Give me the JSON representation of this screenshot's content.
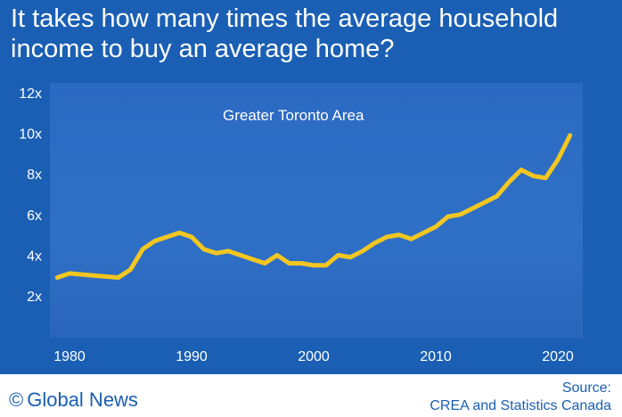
{
  "headline": "It takes how many times the average household income to buy an average home?",
  "footer": {
    "copyright_symbol": "©",
    "brand": "Global News",
    "source_label": "Source:",
    "source_text": "CREA and Statistics Canada"
  },
  "colors": {
    "background": "#1a5fb4",
    "line": "#f3c620",
    "text": "#ffffff"
  },
  "chart_data": {
    "type": "line",
    "title": "",
    "annotation": "Greater Toronto Area",
    "xlabel": "",
    "ylabel": "",
    "xlim": [
      1979,
      2022
    ],
    "ylim": [
      0,
      12
    ],
    "x_ticks": [
      1980,
      1990,
      2000,
      2010,
      2020
    ],
    "y_ticks": [
      {
        "value": 2,
        "label": "2x"
      },
      {
        "value": 4,
        "label": "4x"
      },
      {
        "value": 6,
        "label": "6x"
      },
      {
        "value": 8,
        "label": "8x"
      },
      {
        "value": 10,
        "label": "10x"
      },
      {
        "value": 12,
        "label": "12x"
      }
    ],
    "grid": false,
    "series": [
      {
        "x": [
          1979,
          1980,
          1982,
          1984,
          1985,
          1986,
          1987,
          1989,
          1990,
          1991,
          1992,
          1993,
          1994,
          1995,
          1996,
          1997,
          1998,
          1999,
          2000,
          2001,
          2002,
          2003,
          2004,
          2005,
          2006,
          2007,
          2008,
          2009,
          2010,
          2011,
          2012,
          2013,
          2014,
          2015,
          2016,
          2017,
          2018,
          2019,
          2020,
          2021
        ],
        "y": [
          2.9,
          3.1,
          3.0,
          2.9,
          3.3,
          4.3,
          4.7,
          5.1,
          4.9,
          4.3,
          4.1,
          4.2,
          4.0,
          3.8,
          3.6,
          4.0,
          3.6,
          3.6,
          3.5,
          3.5,
          4.0,
          3.9,
          4.2,
          4.6,
          4.9,
          5.0,
          4.8,
          5.1,
          5.4,
          5.9,
          6.0,
          6.3,
          6.6,
          6.9,
          7.6,
          8.2,
          7.9,
          7.8,
          8.7,
          9.9
        ]
      }
    ]
  }
}
